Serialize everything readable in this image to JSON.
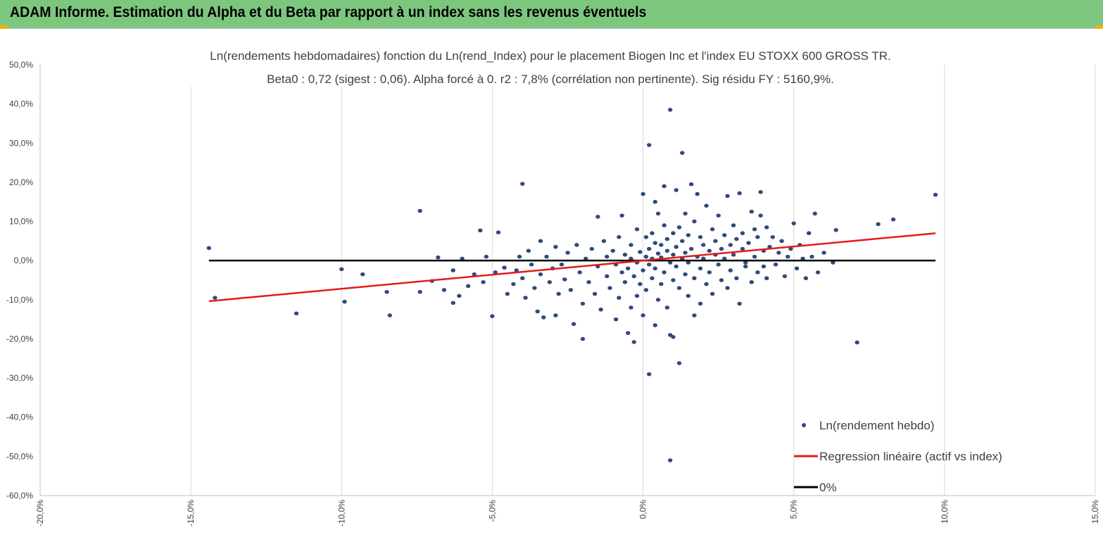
{
  "header": {
    "title": "ADAM Informe. Estimation du Alpha et du Beta par rapport à un index sans les revenus éventuels"
  },
  "chart_data": {
    "type": "scatter",
    "title_line1": "Ln(rendements hebdomadaires) fonction du Ln(rend_Index) pour le placement Biogen Inc et l'index EU STOXX 600 GROSS TR.",
    "title_line2": "Beta0 : 0,72 (sigest : 0,06). Alpha forcé à 0. r2 : 7,8% (corrélation non pertinente). Sig résidu FY : 5160,9%.",
    "xlim": [
      -0.2,
      0.15
    ],
    "ylim": [
      -0.6,
      0.5
    ],
    "x_ticks": [
      -0.2,
      -0.15,
      -0.1,
      -0.05,
      0.0,
      0.05,
      0.1,
      0.15
    ],
    "x_tick_labels": [
      "-20,0%",
      "-15,0%",
      "-10,0%",
      "-5,0%",
      "0,0%",
      "5,0%",
      "10,0%",
      "15,0%"
    ],
    "y_ticks": [
      0.5,
      0.4,
      0.3,
      0.2,
      0.1,
      0.0,
      -0.1,
      -0.2,
      -0.3,
      -0.4,
      -0.5,
      -0.6
    ],
    "y_tick_labels": [
      "50,0%",
      "40,0%",
      "30,0%",
      "20,0%",
      "10,0%",
      "0,0%",
      "-10,0%",
      "-20,0%",
      "-30,0%",
      "-40,0%",
      "-50,0%",
      "-60,0%"
    ],
    "grid": "vertical",
    "legend_position": "bottom-right",
    "series": [
      {
        "name": "Ln(rendement hebdo)",
        "kind": "scatter",
        "color": "#2e4a7d",
        "points": [
          [
            -0.144,
            0.032
          ],
          [
            -0.142,
            -0.095
          ],
          [
            -0.115,
            -0.135
          ],
          [
            -0.1,
            -0.022
          ],
          [
            -0.099,
            -0.105
          ],
          [
            -0.093,
            -0.035
          ],
          [
            -0.085,
            -0.08
          ],
          [
            -0.084,
            -0.14
          ],
          [
            -0.074,
            0.127
          ],
          [
            -0.074,
            -0.08
          ],
          [
            -0.07,
            -0.052
          ],
          [
            -0.068,
            0.008
          ],
          [
            -0.066,
            -0.075
          ],
          [
            -0.063,
            -0.025
          ],
          [
            -0.063,
            -0.108
          ],
          [
            -0.061,
            -0.09
          ],
          [
            -0.06,
            0.005
          ],
          [
            -0.058,
            -0.065
          ],
          [
            -0.056,
            -0.035
          ],
          [
            -0.054,
            0.077
          ],
          [
            -0.053,
            -0.055
          ],
          [
            -0.052,
            0.01
          ],
          [
            -0.05,
            -0.142
          ],
          [
            -0.049,
            -0.03
          ],
          [
            -0.048,
            0.072
          ],
          [
            -0.046,
            -0.018
          ],
          [
            -0.045,
            -0.085
          ],
          [
            -0.043,
            -0.06
          ],
          [
            -0.042,
            -0.025
          ],
          [
            -0.041,
            0.01
          ],
          [
            -0.04,
            0.196
          ],
          [
            -0.04,
            -0.045
          ],
          [
            -0.039,
            -0.095
          ],
          [
            -0.038,
            0.025
          ],
          [
            -0.037,
            -0.01
          ],
          [
            -0.036,
            -0.07
          ],
          [
            -0.035,
            -0.13
          ],
          [
            -0.034,
            0.05
          ],
          [
            -0.034,
            -0.035
          ],
          [
            -0.033,
            -0.145
          ],
          [
            -0.032,
            0.01
          ],
          [
            -0.031,
            -0.055
          ],
          [
            -0.03,
            -0.02
          ],
          [
            -0.029,
            0.035
          ],
          [
            -0.029,
            -0.14
          ],
          [
            -0.028,
            -0.085
          ],
          [
            -0.027,
            -0.01
          ],
          [
            -0.026,
            -0.048
          ],
          [
            -0.025,
            0.02
          ],
          [
            -0.024,
            -0.075
          ],
          [
            -0.023,
            -0.162
          ],
          [
            -0.022,
            0.04
          ],
          [
            -0.021,
            -0.03
          ],
          [
            -0.02,
            -0.11
          ],
          [
            -0.02,
            -0.2
          ],
          [
            -0.019,
            0.005
          ],
          [
            -0.018,
            -0.055
          ],
          [
            -0.017,
            0.03
          ],
          [
            -0.016,
            -0.085
          ],
          [
            -0.015,
            -0.015
          ],
          [
            -0.015,
            0.112
          ],
          [
            -0.014,
            -0.125
          ],
          [
            -0.013,
            0.05
          ],
          [
            -0.012,
            -0.04
          ],
          [
            -0.012,
            0.01
          ],
          [
            -0.011,
            -0.07
          ],
          [
            -0.01,
            0.025
          ],
          [
            -0.009,
            -0.15
          ],
          [
            -0.009,
            -0.01
          ],
          [
            -0.008,
            0.06
          ],
          [
            -0.008,
            -0.095
          ],
          [
            -0.007,
            -0.03
          ],
          [
            -0.007,
            0.115
          ],
          [
            -0.006,
            0.015
          ],
          [
            -0.006,
            -0.055
          ],
          [
            -0.005,
            -0.02
          ],
          [
            -0.005,
            -0.185
          ],
          [
            -0.004,
            0.04
          ],
          [
            -0.004,
            -0.12
          ],
          [
            -0.004,
            0.005
          ],
          [
            -0.003,
            -0.208
          ],
          [
            -0.003,
            -0.04
          ],
          [
            -0.002,
            0.08
          ],
          [
            -0.002,
            -0.005
          ],
          [
            -0.002,
            -0.09
          ],
          [
            -0.001,
            0.022
          ],
          [
            -0.001,
            -0.06
          ],
          [
            0.0,
            -0.025
          ],
          [
            0.0,
            0.17
          ],
          [
            0.0,
            -0.14
          ],
          [
            0.001,
            0.01
          ],
          [
            0.001,
            0.06
          ],
          [
            0.001,
            -0.075
          ],
          [
            0.002,
            -0.01
          ],
          [
            0.002,
            0.03
          ],
          [
            0.002,
            0.295
          ],
          [
            0.002,
            -0.29
          ],
          [
            0.003,
            0.07
          ],
          [
            0.003,
            -0.045
          ],
          [
            0.003,
            0.005
          ],
          [
            0.004,
            -0.165
          ],
          [
            0.004,
            0.045
          ],
          [
            0.004,
            0.15
          ],
          [
            0.004,
            -0.02
          ],
          [
            0.005,
            0.018
          ],
          [
            0.005,
            -0.1
          ],
          [
            0.005,
            0.12
          ],
          [
            0.006,
            0.04
          ],
          [
            0.006,
            -0.06
          ],
          [
            0.006,
            0.008
          ],
          [
            0.007,
            0.09
          ],
          [
            0.007,
            -0.03
          ],
          [
            0.007,
            0.19
          ],
          [
            0.008,
            0.025
          ],
          [
            0.008,
            -0.12
          ],
          [
            0.008,
            0.055
          ],
          [
            0.009,
            -0.19
          ],
          [
            0.009,
            -0.005
          ],
          [
            0.009,
            0.385
          ],
          [
            0.009,
            -0.51
          ],
          [
            0.01,
            0.07
          ],
          [
            0.01,
            -0.05
          ],
          [
            0.01,
            0.015
          ],
          [
            0.01,
            -0.195
          ],
          [
            0.011,
            0.035
          ],
          [
            0.011,
            0.18
          ],
          [
            0.011,
            -0.015
          ],
          [
            0.012,
            -0.262
          ],
          [
            0.012,
            0.085
          ],
          [
            0.012,
            -0.07
          ],
          [
            0.013,
            0.05
          ],
          [
            0.013,
            0.005
          ],
          [
            0.013,
            0.275
          ],
          [
            0.014,
            -0.035
          ],
          [
            0.014,
            0.12
          ],
          [
            0.014,
            0.02
          ],
          [
            0.015,
            -0.09
          ],
          [
            0.015,
            0.065
          ],
          [
            0.015,
            -0.005
          ],
          [
            0.016,
            0.195
          ],
          [
            0.016,
            0.03
          ],
          [
            0.017,
            -0.14
          ],
          [
            0.017,
            0.1
          ],
          [
            0.017,
            -0.045
          ],
          [
            0.018,
            0.01
          ],
          [
            0.018,
            0.17
          ],
          [
            0.019,
            -0.11
          ],
          [
            0.019,
            0.06
          ],
          [
            0.019,
            -0.02
          ],
          [
            0.02,
            0.04
          ],
          [
            0.02,
            0.005
          ],
          [
            0.021,
            -0.06
          ],
          [
            0.021,
            0.14
          ],
          [
            0.022,
            0.025
          ],
          [
            0.022,
            -0.03
          ],
          [
            0.023,
            0.08
          ],
          [
            0.023,
            -0.085
          ],
          [
            0.024,
            0.015
          ],
          [
            0.024,
            0.05
          ],
          [
            0.025,
            -0.01
          ],
          [
            0.025,
            0.115
          ],
          [
            0.026,
            0.03
          ],
          [
            0.026,
            -0.05
          ],
          [
            0.027,
            0.065
          ],
          [
            0.027,
            0.005
          ],
          [
            0.028,
            -0.07
          ],
          [
            0.028,
            0.165
          ],
          [
            0.029,
            0.04
          ],
          [
            0.029,
            -0.025
          ],
          [
            0.03,
            0.09
          ],
          [
            0.03,
            0.015
          ],
          [
            0.031,
            -0.045
          ],
          [
            0.031,
            0.055
          ],
          [
            0.032,
            0.172
          ],
          [
            0.032,
            -0.11
          ],
          [
            0.033,
            0.03
          ],
          [
            0.033,
            0.07
          ],
          [
            0.034,
            -0.005
          ],
          [
            0.034,
            -0.015
          ],
          [
            0.035,
            0.045
          ],
          [
            0.036,
            0.125
          ],
          [
            0.036,
            -0.055
          ],
          [
            0.037,
            0.01
          ],
          [
            0.037,
            0.08
          ],
          [
            0.038,
            -0.03
          ],
          [
            0.038,
            0.06
          ],
          [
            0.039,
            0.115
          ],
          [
            0.039,
            0.175
          ],
          [
            0.04,
            0.025
          ],
          [
            0.04,
            -0.015
          ],
          [
            0.041,
            0.085
          ],
          [
            0.041,
            -0.045
          ],
          [
            0.042,
            0.035
          ],
          [
            0.043,
            0.06
          ],
          [
            0.044,
            -0.01
          ],
          [
            0.045,
            0.02
          ],
          [
            0.046,
            0.05
          ],
          [
            0.047,
            -0.04
          ],
          [
            0.048,
            0.01
          ],
          [
            0.049,
            0.03
          ],
          [
            0.05,
            0.095
          ],
          [
            0.051,
            -0.02
          ],
          [
            0.052,
            0.04
          ],
          [
            0.053,
            0.005
          ],
          [
            0.054,
            -0.045
          ],
          [
            0.055,
            0.07
          ],
          [
            0.056,
            0.01
          ],
          [
            0.057,
            0.12
          ],
          [
            0.058,
            -0.03
          ],
          [
            0.06,
            0.02
          ],
          [
            0.063,
            -0.005
          ],
          [
            0.064,
            0.078
          ],
          [
            0.071,
            -0.209
          ],
          [
            0.078,
            0.093
          ],
          [
            0.083,
            0.105
          ],
          [
            0.097,
            0.168
          ]
        ]
      },
      {
        "name": "Regression linéaire (actif vs index)",
        "kind": "line",
        "color": "#e31b1b",
        "slope": 0.72,
        "intercept": 0.0,
        "x_range": [
          -0.144,
          0.097
        ]
      },
      {
        "name": "0%",
        "kind": "line",
        "color": "#000000",
        "slope": 0.0,
        "intercept": 0.0,
        "x_range": [
          -0.144,
          0.097
        ]
      }
    ]
  }
}
